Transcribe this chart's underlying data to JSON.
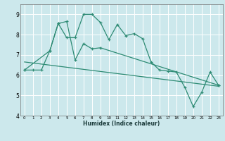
{
  "xlabel": "Humidex (Indice chaleur)",
  "background_color": "#cce8ec",
  "grid_color": "#ffffff",
  "line_color": "#2e8b74",
  "xlim": [
    -0.5,
    23.5
  ],
  "ylim": [
    4,
    9.5
  ],
  "yticks": [
    4,
    5,
    6,
    7,
    8,
    9
  ],
  "xticks": [
    0,
    1,
    2,
    3,
    4,
    5,
    6,
    7,
    8,
    9,
    10,
    11,
    12,
    13,
    14,
    15,
    16,
    17,
    18,
    19,
    20,
    21,
    22,
    23
  ],
  "curve1_x": [
    0,
    1,
    2,
    3,
    4,
    5,
    6,
    7,
    8,
    9,
    10,
    11,
    12,
    13,
    14,
    15,
    16,
    17,
    18,
    19,
    20,
    21,
    22,
    23
  ],
  "curve1_y": [
    6.25,
    6.25,
    6.25,
    7.2,
    8.55,
    7.85,
    7.85,
    9.0,
    9.0,
    8.6,
    7.75,
    8.5,
    7.95,
    8.05,
    7.8,
    6.65,
    6.25,
    6.2,
    6.15,
    5.4,
    4.45,
    5.15,
    6.15,
    5.5
  ],
  "curve2_x": [
    0,
    3,
    4,
    5,
    6,
    7,
    8,
    9,
    23
  ],
  "curve2_y": [
    6.25,
    7.2,
    8.55,
    8.65,
    6.75,
    7.55,
    7.3,
    7.35,
    5.5
  ],
  "trend_x": [
    0,
    23
  ],
  "trend_y": [
    6.65,
    5.45
  ]
}
